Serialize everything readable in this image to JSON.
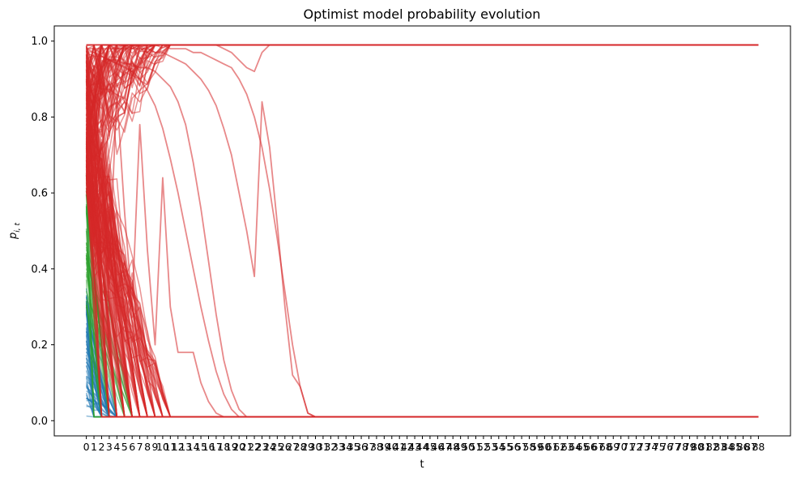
{
  "chart_data": {
    "type": "line",
    "title": "Optimist model probability evolution",
    "xlabel": "t",
    "ylabel": "p",
    "ylabel_sub": "i, t",
    "xlim": [
      -4.2,
      92.2
    ],
    "ylim": [
      -0.04,
      1.04
    ],
    "x_ticks": [
      0,
      1,
      2,
      3,
      4,
      5,
      6,
      7,
      8,
      9,
      10,
      11,
      12,
      13,
      14,
      15,
      16,
      17,
      18,
      19,
      20,
      21,
      22,
      23,
      24,
      25,
      26,
      27,
      28,
      29,
      30,
      31,
      32,
      33,
      34,
      35,
      36,
      37,
      38,
      39,
      40,
      41,
      42,
      43,
      44,
      45,
      46,
      47,
      48,
      49,
      50,
      51,
      52,
      53,
      54,
      55,
      56,
      57,
      58,
      59,
      60,
      61,
      62,
      63,
      64,
      65,
      66,
      67,
      68,
      69,
      70,
      71,
      72,
      73,
      74,
      75,
      76,
      77,
      78,
      79,
      80,
      81,
      82,
      83,
      84,
      85,
      86,
      87,
      88
    ],
    "y_ticks": [
      0.0,
      0.2,
      0.4,
      0.6,
      0.8,
      1.0
    ],
    "y_tick_labels": [
      "0.0",
      "0.2",
      "0.4",
      "0.6",
      "0.8",
      "1.0"
    ],
    "grid": false,
    "groups": [
      {
        "color": "#1f77b4",
        "line_count": 60,
        "start_range": [
          0.01,
          0.35
        ],
        "decay_by": 4,
        "final": 0.01
      },
      {
        "color": "#2ca02c",
        "line_count": 40,
        "start_range": [
          0.3,
          0.65
        ],
        "decay_by": 6,
        "final": 0.01
      },
      {
        "color": "#d62728",
        "line_count": 200,
        "start_range": [
          0.6,
          0.99
        ],
        "final_high": 0.99,
        "final_low": 0.01
      }
    ],
    "series": [
      {
        "values": [
          0.99,
          0.99,
          0.99,
          0.99,
          0.99,
          0.99,
          0.99,
          0.99,
          0.99,
          0.99,
          0.99,
          0.99,
          0.99,
          0.99,
          0.99,
          0.99,
          0.99,
          0.99,
          0.99,
          0.99,
          0.99,
          0.99,
          0.99,
          0.99,
          0.99,
          0.99,
          0.99,
          0.99,
          0.99,
          0.99,
          0.99,
          0.99,
          0.99,
          0.99,
          0.99,
          0.99,
          0.99,
          0.99,
          0.99,
          0.99,
          0.99,
          0.99,
          0.99,
          0.99,
          0.99,
          0.99,
          0.99,
          0.99,
          0.99,
          0.99,
          0.99,
          0.99,
          0.99,
          0.99,
          0.99,
          0.99,
          0.99,
          0.99,
          0.99,
          0.99,
          0.99,
          0.99,
          0.99,
          0.99,
          0.99,
          0.99,
          0.99,
          0.99,
          0.99,
          0.99,
          0.99,
          0.99,
          0.99,
          0.99,
          0.99,
          0.99,
          0.99,
          0.99,
          0.99,
          0.99,
          0.99,
          0.99,
          0.99,
          0.99,
          0.99,
          0.99,
          0.99,
          0.99,
          0.99
        ]
      },
      {
        "values": [
          0.98,
          0.97,
          0.96,
          0.95,
          0.94,
          0.93,
          0.92,
          0.9,
          0.87,
          0.83,
          0.77,
          0.69,
          0.6,
          0.5,
          0.4,
          0.3,
          0.21,
          0.13,
          0.07,
          0.03,
          0.01,
          0.01,
          0.01,
          0.01,
          0.01,
          0.01,
          0.01,
          0.01,
          0.01,
          0.01,
          0.01,
          0.01,
          0.01,
          0.01,
          0.01,
          0.01,
          0.01,
          0.01,
          0.01,
          0.01,
          0.01,
          0.01,
          0.01,
          0.01,
          0.01,
          0.01,
          0.01,
          0.01,
          0.01,
          0.01,
          0.01,
          0.01,
          0.01,
          0.01,
          0.01,
          0.01,
          0.01,
          0.01,
          0.01,
          0.01,
          0.01,
          0.01,
          0.01,
          0.01,
          0.01,
          0.01,
          0.01,
          0.01,
          0.01,
          0.01,
          0.01,
          0.01,
          0.01,
          0.01,
          0.01,
          0.01,
          0.01,
          0.01,
          0.01,
          0.01,
          0.01,
          0.01,
          0.01,
          0.01,
          0.01,
          0.01,
          0.01,
          0.01,
          0.01
        ]
      },
      {
        "values": [
          0.97,
          0.96,
          0.96,
          0.95,
          0.95,
          0.94,
          0.94,
          0.93,
          0.93,
          0.92,
          0.9,
          0.88,
          0.84,
          0.78,
          0.68,
          0.56,
          0.42,
          0.28,
          0.16,
          0.08,
          0.03,
          0.01,
          0.01,
          0.01,
          0.01,
          0.01,
          0.01,
          0.01,
          0.01,
          0.01,
          0.01,
          0.01,
          0.01,
          0.01,
          0.01,
          0.01,
          0.01,
          0.01,
          0.01,
          0.01,
          0.01,
          0.01,
          0.01,
          0.01,
          0.01,
          0.01,
          0.01,
          0.01,
          0.01,
          0.01,
          0.01,
          0.01,
          0.01,
          0.01,
          0.01,
          0.01,
          0.01,
          0.01,
          0.01,
          0.01,
          0.01,
          0.01,
          0.01,
          0.01,
          0.01,
          0.01,
          0.01,
          0.01,
          0.01,
          0.01,
          0.01,
          0.01,
          0.01,
          0.01,
          0.01,
          0.01,
          0.01,
          0.01,
          0.01,
          0.01,
          0.01,
          0.01,
          0.01,
          0.01,
          0.01,
          0.01,
          0.01,
          0.01,
          0.01
        ]
      },
      {
        "values": [
          0.99,
          0.99,
          0.99,
          0.99,
          0.99,
          0.99,
          0.99,
          0.99,
          0.99,
          0.99,
          0.99,
          0.98,
          0.98,
          0.98,
          0.97,
          0.97,
          0.96,
          0.95,
          0.94,
          0.93,
          0.9,
          0.86,
          0.8,
          0.72,
          0.61,
          0.48,
          0.34,
          0.2,
          0.09,
          0.02,
          0.01,
          0.01,
          0.01,
          0.01,
          0.01,
          0.01,
          0.01,
          0.01,
          0.01,
          0.01,
          0.01,
          0.01,
          0.01,
          0.01,
          0.01,
          0.01,
          0.01,
          0.01,
          0.01,
          0.01,
          0.01,
          0.01,
          0.01,
          0.01,
          0.01,
          0.01,
          0.01,
          0.01,
          0.01,
          0.01,
          0.01,
          0.01,
          0.01,
          0.01,
          0.01,
          0.01,
          0.01,
          0.01,
          0.01,
          0.01,
          0.01,
          0.01,
          0.01,
          0.01,
          0.01,
          0.01,
          0.01,
          0.01,
          0.01,
          0.01,
          0.01,
          0.01,
          0.01,
          0.01,
          0.01,
          0.01,
          0.01,
          0.01,
          0.01
        ]
      },
      {
        "values": [
          0.98,
          0.98,
          0.98,
          0.98,
          0.98,
          0.98,
          0.98,
          0.98,
          0.98,
          0.97,
          0.97,
          0.96,
          0.95,
          0.94,
          0.92,
          0.9,
          0.87,
          0.83,
          0.77,
          0.7,
          0.6,
          0.5,
          0.38,
          0.84,
          0.72,
          0.52,
          0.3,
          0.12,
          0.09,
          0.02,
          0.01,
          0.01,
          0.01,
          0.01,
          0.01,
          0.01,
          0.01,
          0.01,
          0.01,
          0.01,
          0.01,
          0.01,
          0.01,
          0.01,
          0.01,
          0.01,
          0.01,
          0.01,
          0.01,
          0.01,
          0.01,
          0.01,
          0.01,
          0.01,
          0.01,
          0.01,
          0.01,
          0.01,
          0.01,
          0.01,
          0.01,
          0.01,
          0.01,
          0.01,
          0.01,
          0.01,
          0.01,
          0.01,
          0.01,
          0.01,
          0.01,
          0.01,
          0.01,
          0.01,
          0.01,
          0.01,
          0.01,
          0.01,
          0.01,
          0.01,
          0.01,
          0.01,
          0.01,
          0.01,
          0.01,
          0.01,
          0.01,
          0.01,
          0.01
        ]
      },
      {
        "values": [
          0.99,
          0.99,
          0.99,
          0.99,
          0.99,
          0.99,
          0.99,
          0.99,
          0.99,
          0.99,
          0.99,
          0.99,
          0.99,
          0.99,
          0.99,
          0.99,
          0.99,
          0.99,
          0.98,
          0.97,
          0.95,
          0.93,
          0.92,
          0.97,
          0.99,
          0.99,
          0.99,
          0.99,
          0.99,
          0.99,
          0.99,
          0.99,
          0.99,
          0.99,
          0.99,
          0.99,
          0.99,
          0.99,
          0.99,
          0.99,
          0.99,
          0.99,
          0.99,
          0.99,
          0.99,
          0.99,
          0.99,
          0.99,
          0.99,
          0.99,
          0.99,
          0.99,
          0.99,
          0.99,
          0.99,
          0.99,
          0.99,
          0.99,
          0.99,
          0.99,
          0.99,
          0.99,
          0.99,
          0.99,
          0.99,
          0.99,
          0.99,
          0.99,
          0.99,
          0.99,
          0.99,
          0.99,
          0.99,
          0.99,
          0.99,
          0.99,
          0.99,
          0.99,
          0.99,
          0.99,
          0.99,
          0.99,
          0.99,
          0.99,
          0.99,
          0.99,
          0.99,
          0.99,
          0.99
        ]
      },
      {
        "values": [
          0.9,
          0.85,
          0.7,
          0.4,
          0.86,
          0.55,
          0.3,
          0.78,
          0.45,
          0.2,
          0.64,
          0.3,
          0.18,
          0.18,
          0.18,
          0.1,
          0.05,
          0.02,
          0.01,
          0.01,
          0.01,
          0.01,
          0.01,
          0.01,
          0.01,
          0.01,
          0.01,
          0.01,
          0.01,
          0.01,
          0.01,
          0.01,
          0.01,
          0.01,
          0.01,
          0.01,
          0.01,
          0.01,
          0.01,
          0.01,
          0.01,
          0.01,
          0.01,
          0.01,
          0.01,
          0.01,
          0.01,
          0.01,
          0.01,
          0.01,
          0.01,
          0.01,
          0.01,
          0.01,
          0.01,
          0.01,
          0.01,
          0.01,
          0.01,
          0.01,
          0.01,
          0.01,
          0.01,
          0.01,
          0.01,
          0.01,
          0.01,
          0.01,
          0.01,
          0.01,
          0.01,
          0.01,
          0.01,
          0.01,
          0.01,
          0.01,
          0.01,
          0.01,
          0.01,
          0.01,
          0.01,
          0.01,
          0.01,
          0.01,
          0.01,
          0.01,
          0.01,
          0.01,
          0.01
        ]
      }
    ]
  }
}
